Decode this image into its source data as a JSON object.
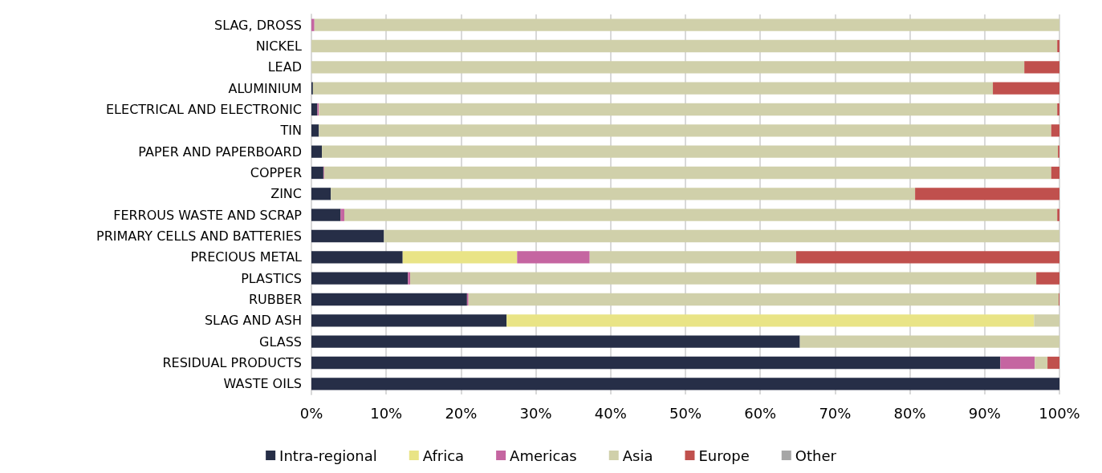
{
  "chart_data": {
    "type": "bar",
    "orientation": "horizontal",
    "stacked": true,
    "legend": "bottom",
    "grid": "x",
    "categories": [
      "SLAG, DROSS",
      "NICKEL",
      "LEAD",
      "ALUMINIUM",
      "ELECTRICAL AND ELECTRONIC",
      "TIN",
      "PAPER AND PAPERBOARD",
      "COPPER",
      "ZINC",
      "FERROUS WASTE AND SCRAP",
      "PRIMARY CELLS AND BATTERIES",
      "PRECIOUS METAL",
      "PLASTICS",
      "RUBBER",
      "SLAG AND ASH",
      "GLASS",
      "RESIDUAL PRODUCTS",
      "WASTE OILS"
    ],
    "xlim": [
      0,
      100
    ],
    "xticks": [
      {
        "value": 0,
        "label": "0%"
      },
      {
        "value": 10,
        "label": "10%"
      },
      {
        "value": 20,
        "label": "20%"
      },
      {
        "value": 30,
        "label": "30%"
      },
      {
        "value": 40,
        "label": "40%"
      },
      {
        "value": 50,
        "label": "50%"
      },
      {
        "value": 60,
        "label": "60%"
      },
      {
        "value": 70,
        "label": "70%"
      },
      {
        "value": 80,
        "label": "80%"
      },
      {
        "value": 90,
        "label": "90%"
      },
      {
        "value": 100,
        "label": "100%"
      }
    ],
    "series": [
      {
        "name": "Intra-regional",
        "color": "#262e47",
        "values": [
          0,
          0,
          0,
          0.2,
          0.8,
          1.0,
          1.4,
          1.6,
          2.6,
          3.9,
          9.7,
          12.2,
          12.9,
          20.8,
          26.1,
          65.3,
          92.1,
          100
        ]
      },
      {
        "name": "Africa",
        "color": "#e9e486",
        "values": [
          0,
          0,
          0,
          0,
          0,
          0,
          0,
          0,
          0,
          0,
          0,
          15.3,
          0,
          0,
          70.5,
          0,
          0,
          0
        ]
      },
      {
        "name": "Americas",
        "color": "#c565a1",
        "values": [
          0.4,
          0,
          0,
          0,
          0.2,
          0,
          0,
          0.1,
          0,
          0.5,
          0,
          9.7,
          0.3,
          0.2,
          0,
          0,
          4.6,
          0
        ]
      },
      {
        "name": "Asia",
        "color": "#d0d0aa",
        "values": [
          99.6,
          99.7,
          95.3,
          90.9,
          98.7,
          97.9,
          98.4,
          97.2,
          78.1,
          95.3,
          90.3,
          27.6,
          83.7,
          78.9,
          3.4,
          34.7,
          1.7,
          0
        ]
      },
      {
        "name": "Europe",
        "color": "#c0504d",
        "values": [
          0,
          0.3,
          4.7,
          8.9,
          0.3,
          1.1,
          0.2,
          1.1,
          19.3,
          0.3,
          0,
          35.2,
          3.1,
          0.1,
          0,
          0,
          1.6,
          0
        ]
      },
      {
        "name": "Other",
        "color": "#a6a6a6",
        "values": [
          0,
          0,
          0,
          0,
          0,
          0,
          0,
          0,
          0,
          0,
          0,
          0,
          0,
          0,
          0,
          0,
          0,
          0
        ]
      }
    ]
  }
}
